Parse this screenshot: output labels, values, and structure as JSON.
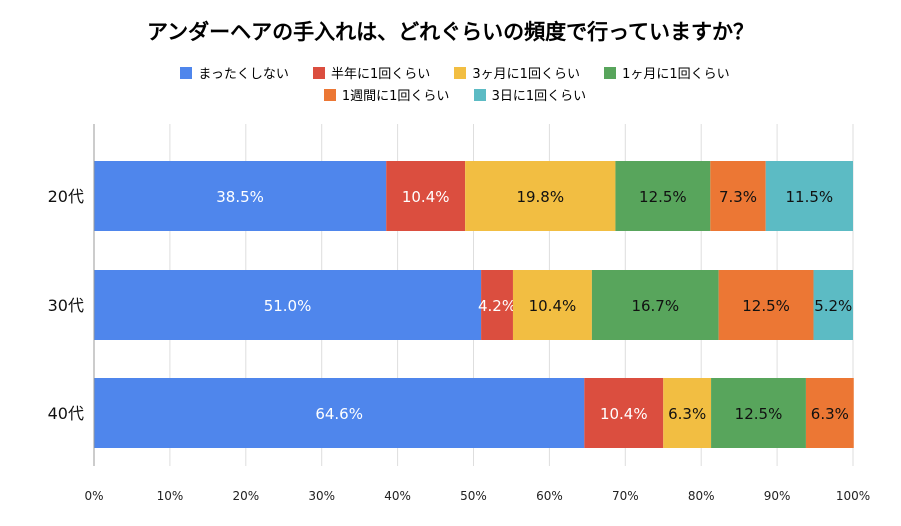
{
  "colors": [
    "#4f86ec",
    "#db4e3f",
    "#f2be42",
    "#58a55c",
    "#ec7734",
    "#5cbbc4"
  ],
  "chart_data": {
    "type": "bar",
    "orientation": "horizontal",
    "stacked": "percent",
    "title": "アンダーヘアの手入れは、どれぐらいの頻度で行っていますか？",
    "legend_position": "top",
    "categories": [
      "20代",
      "30代",
      "40代"
    ],
    "series": [
      {
        "name": "まったくしない",
        "values": [
          38.5,
          51.0,
          64.6
        ],
        "labels": [
          "38.5%",
          "51.0%",
          "64.6%"
        ]
      },
      {
        "name": "半年に1回くらい",
        "values": [
          10.4,
          4.2,
          10.4
        ],
        "labels": [
          "10.4%",
          "4.2%",
          "10.4%"
        ]
      },
      {
        "name": "3ヶ月に1回くらい",
        "values": [
          19.8,
          10.4,
          6.3
        ],
        "labels": [
          "19.8%",
          "10.4%",
          "6.3%"
        ]
      },
      {
        "name": "1ヶ月に1回くらい",
        "values": [
          12.5,
          16.7,
          12.5
        ],
        "labels": [
          "12.5%",
          "16.7%",
          "12.5%"
        ]
      },
      {
        "name": "1週間に1回くらい",
        "values": [
          7.3,
          12.5,
          6.3
        ],
        "labels": [
          "7.3%",
          "12.5%",
          "6.3%"
        ]
      },
      {
        "name": "3日に1回くらい",
        "values": [
          11.5,
          5.2,
          0
        ],
        "labels": [
          "11.5%",
          "5.2%",
          ""
        ]
      }
    ],
    "xlim": [
      0,
      100
    ],
    "xticks": [
      "0%",
      "10%",
      "20%",
      "30%",
      "40%",
      "50%",
      "60%",
      "70%",
      "80%",
      "90%",
      "100%"
    ],
    "grid": true
  }
}
